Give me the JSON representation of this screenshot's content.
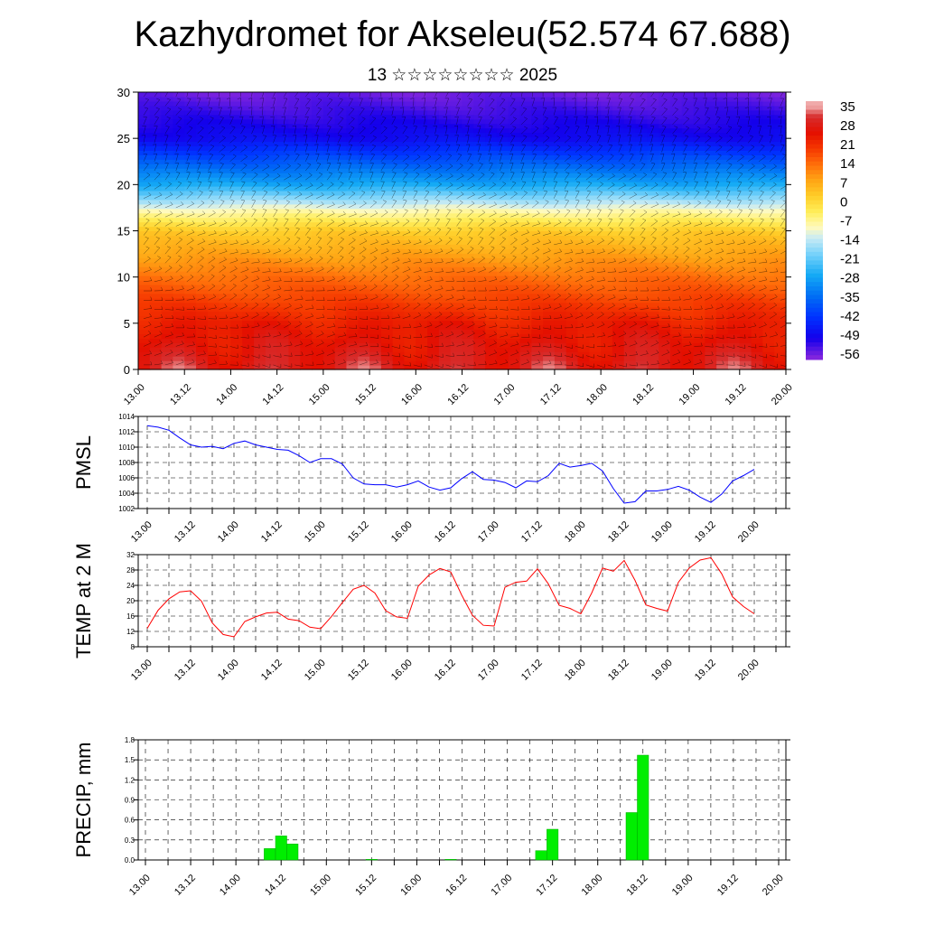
{
  "title": "Kazhydromet for Akseleu(52.574 67.688)",
  "subtitle": "13 ☆☆☆☆☆☆☆☆ 2025",
  "colors": {
    "pmsl_line": "#0000ff",
    "temp_line": "#ff0000",
    "precip_bar": "#00ee00",
    "grid": "#000000"
  },
  "time_ticks": [
    "13.00",
    "13.12",
    "14.00",
    "14.12",
    "15.00",
    "15.12",
    "16.00",
    "16.12",
    "17.00",
    "17.12",
    "18.00",
    "18.12",
    "19.00",
    "19.12",
    "20.00"
  ],
  "chart_data": [
    {
      "type": "heatmap",
      "xlabel": "",
      "ylabel": "",
      "yticks": [
        "0",
        "5",
        "10",
        "15",
        "20",
        "25",
        "30"
      ],
      "ylim": [
        0,
        30
      ],
      "xlim": [
        0,
        168
      ],
      "colorbar_labels": [
        "35",
        "28",
        "21",
        "14",
        "7",
        "0",
        "-7",
        "-14",
        "-21",
        "-28",
        "-35",
        "-42",
        "-49",
        "-56"
      ],
      "colorbar_range": [
        -60,
        38
      ],
      "level_temperature_profile": {
        "levels": [
          0,
          5,
          10,
          15,
          17,
          20,
          25,
          30
        ],
        "temperatures": [
          30,
          24,
          14,
          2,
          -8,
          -28,
          -50,
          -58
        ]
      },
      "wind_barbs": true
    },
    {
      "type": "line",
      "ylabel": "PMSL",
      "ylim": [
        1002,
        1014
      ],
      "yticks": [
        "1002",
        "1004",
        "1006",
        "1008",
        "1010",
        "1012",
        "1014"
      ],
      "x_hours": [
        0,
        3,
        6,
        9,
        12,
        15,
        18,
        21,
        24,
        27,
        30,
        33,
        36,
        39,
        42,
        45,
        48,
        51,
        54,
        57,
        60,
        63,
        66,
        69,
        72,
        75,
        78,
        81,
        84,
        87,
        90,
        93,
        96,
        99,
        102,
        105,
        108,
        111,
        114,
        117,
        120,
        123,
        126,
        129,
        132,
        135,
        138,
        141,
        144,
        147,
        150,
        153,
        156,
        159,
        162,
        165,
        168
      ],
      "values": [
        1012.8,
        1012.6,
        1012.2,
        1011.2,
        1010.3,
        1010.0,
        1010.1,
        1009.8,
        1010.5,
        1010.8,
        1010.3,
        1010.0,
        1009.7,
        1009.6,
        1008.9,
        1008.0,
        1008.5,
        1008.5,
        1007.8,
        1006.0,
        1005.2,
        1005.1,
        1005.1,
        1004.8,
        1005.1,
        1005.6,
        1004.8,
        1004.4,
        1004.7,
        1005.9,
        1006.8,
        1005.8,
        1005.7,
        1005.4,
        1004.7,
        1005.6,
        1005.5,
        1006.3,
        1007.9,
        1007.4,
        1007.6,
        1007.9,
        1006.9,
        1004.6,
        1002.7,
        1002.9,
        1004.3,
        1004.3,
        1004.5,
        1004.9,
        1004.4,
        1003.5,
        1002.8,
        1003.9,
        1005.6,
        1006.3,
        1007.1
      ]
    },
    {
      "type": "line",
      "ylabel": "TEMP at 2 M",
      "ylim": [
        8,
        32
      ],
      "yticks": [
        "8",
        "12",
        "16",
        "20",
        "24",
        "28",
        "32"
      ],
      "x_hours": [
        0,
        3,
        6,
        9,
        12,
        15,
        18,
        21,
        24,
        27,
        30,
        33,
        36,
        39,
        42,
        45,
        48,
        51,
        54,
        57,
        60,
        63,
        66,
        69,
        72,
        75,
        78,
        81,
        84,
        87,
        90,
        93,
        96,
        99,
        102,
        105,
        108,
        111,
        114,
        117,
        120,
        123,
        126,
        129,
        132,
        135,
        138,
        141,
        144,
        147,
        150,
        153,
        156,
        159,
        162,
        165,
        168
      ],
      "values": [
        12.8,
        17.5,
        20.5,
        22.3,
        22.6,
        19.9,
        14.2,
        11.2,
        10.6,
        14.6,
        15.8,
        16.8,
        17.0,
        15.2,
        14.8,
        13.1,
        12.7,
        15.9,
        19.5,
        23.0,
        24.0,
        22.0,
        17.4,
        15.8,
        15.4,
        23.8,
        26.7,
        28.4,
        27.5,
        21.5,
        16.2,
        13.6,
        13.4,
        23.5,
        24.8,
        25.1,
        28.3,
        24.4,
        18.8,
        18.0,
        16.6,
        22.0,
        28.5,
        27.7,
        30.5,
        25.3,
        18.9,
        18.0,
        17.3,
        24.8,
        28.5,
        30.6,
        31.2,
        27.0,
        21.0,
        18.5,
        16.6
      ]
    },
    {
      "type": "bar",
      "ylabel": "PRECIP, mm",
      "ylim": [
        0,
        1.8
      ],
      "yticks": [
        "0.0",
        "0.3",
        "0.6",
        "0.9",
        "1.2",
        "1.5",
        "1.8"
      ],
      "bar_width_hours": 3,
      "x_hours": [
        33,
        36,
        39,
        60,
        81,
        105,
        108,
        129,
        132,
        174
      ],
      "values": [
        0.17,
        0.36,
        0.24,
        0.01,
        0.01,
        0.14,
        0.46,
        0.71,
        1.57,
        0.02
      ]
    }
  ]
}
